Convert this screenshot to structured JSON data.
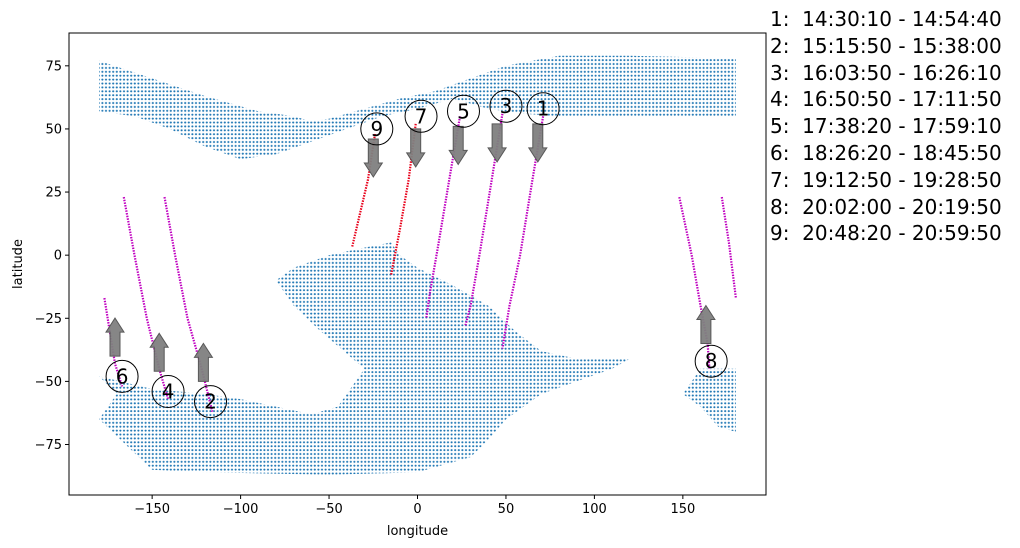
{
  "chart_data": {
    "type": "scatter",
    "title": "",
    "xlabel": "longitude",
    "ylabel": "latitude",
    "xlim": [
      -197,
      197
    ],
    "ylim": [
      -95,
      88
    ],
    "xticks": [
      -150,
      -100,
      -50,
      0,
      50,
      100,
      150
    ],
    "yticks": [
      -75,
      -50,
      -25,
      0,
      25,
      50,
      75
    ],
    "xtick_labels": [
      "−150",
      "−100",
      "−50",
      "0",
      "50",
      "100",
      "150"
    ],
    "ytick_labels": [
      "−75",
      "−50",
      "−25",
      "0",
      "25",
      "50",
      "75"
    ],
    "grid": false,
    "colors": {
      "grid_points": "#1f77b4",
      "track_magenta": "#c000c0",
      "track_red": "#e8001a",
      "arrow_fill": "#808080",
      "arrow_edge": "#505050"
    },
    "regions": [
      {
        "name": "north",
        "outline": [
          [
            -180,
            77
          ],
          [
            -150,
            70
          ],
          [
            -120,
            63
          ],
          [
            -90,
            57
          ],
          [
            -70,
            55
          ],
          [
            -60,
            53
          ],
          [
            -50,
            54
          ],
          [
            -30,
            58
          ],
          [
            -10,
            62
          ],
          [
            10,
            65
          ],
          [
            30,
            70
          ],
          [
            50,
            75
          ],
          [
            80,
            79
          ],
          [
            120,
            79
          ],
          [
            180,
            78
          ],
          [
            180,
            55
          ],
          [
            150,
            55
          ],
          [
            120,
            55
          ],
          [
            100,
            55
          ],
          [
            80,
            55
          ],
          [
            60,
            56
          ],
          [
            40,
            58
          ],
          [
            20,
            62
          ],
          [
            0,
            58
          ],
          [
            -20,
            55
          ],
          [
            -40,
            50
          ],
          [
            -60,
            45
          ],
          [
            -80,
            40
          ],
          [
            -100,
            38
          ],
          [
            -120,
            43
          ],
          [
            -140,
            50
          ],
          [
            -160,
            55
          ],
          [
            -180,
            57
          ]
        ]
      },
      {
        "name": "south",
        "outline": [
          [
            -180,
            -48
          ],
          [
            -150,
            -53
          ],
          [
            -120,
            -55
          ],
          [
            -100,
            -57
          ],
          [
            -80,
            -60
          ],
          [
            -60,
            -63
          ],
          [
            -45,
            -60
          ],
          [
            -35,
            -50
          ],
          [
            -30,
            -45
          ],
          [
            -55,
            -30
          ],
          [
            -70,
            -20
          ],
          [
            -80,
            -10
          ],
          [
            -70,
            -5
          ],
          [
            -50,
            0
          ],
          [
            -30,
            3
          ],
          [
            -15,
            5
          ],
          [
            -10,
            0
          ],
          [
            0,
            -5
          ],
          [
            20,
            -12
          ],
          [
            40,
            -20
          ],
          [
            55,
            -30
          ],
          [
            70,
            -38
          ],
          [
            90,
            -41
          ],
          [
            120,
            -41
          ],
          [
            110,
            -45
          ],
          [
            90,
            -50
          ],
          [
            70,
            -55
          ],
          [
            60,
            -60
          ],
          [
            50,
            -65
          ],
          [
            40,
            -73
          ],
          [
            30,
            -80
          ],
          [
            0,
            -86
          ],
          [
            -50,
            -87
          ],
          [
            -120,
            -86
          ],
          [
            -150,
            -85
          ],
          [
            -165,
            -75
          ],
          [
            -180,
            -65
          ],
          [
            -170,
            -55
          ]
        ]
      },
      {
        "name": "south-east",
        "outline": [
          [
            160,
            -45
          ],
          [
            180,
            -45
          ],
          [
            180,
            -70
          ],
          [
            170,
            -68
          ],
          [
            160,
            -60
          ],
          [
            150,
            -55
          ]
        ]
      }
    ],
    "tracks": [
      {
        "id": "1",
        "color": "magenta",
        "points": [
          [
            71,
            55
          ],
          [
            65,
            30
          ],
          [
            58,
            0
          ],
          [
            52,
            -20
          ],
          [
            48,
            -37
          ]
        ],
        "label_at": [
          71,
          58
        ],
        "arrow": "down",
        "arrow_at": [
          68,
          52
        ]
      },
      {
        "id": "2",
        "color": "magenta",
        "points": [
          [
            -143,
            23
          ],
          [
            -137,
            0
          ],
          [
            -130,
            -25
          ],
          [
            -122,
            -45
          ],
          [
            -116,
            -62
          ]
        ],
        "label_at": [
          -117,
          -58
        ],
        "arrow": "up",
        "arrow_at": [
          -121,
          -50
        ]
      },
      {
        "id": "3",
        "color": "magenta",
        "points": [
          [
            48,
            56
          ],
          [
            42,
            30
          ],
          [
            35,
            0
          ],
          [
            30,
            -20
          ],
          [
            27,
            -28
          ]
        ],
        "label_at": [
          50,
          59
        ],
        "arrow": "down",
        "arrow_at": [
          45,
          52
        ]
      },
      {
        "id": "4",
        "color": "magenta",
        "points": [
          [
            -166,
            23
          ],
          [
            -160,
            0
          ],
          [
            -153,
            -25
          ],
          [
            -146,
            -45
          ],
          [
            -141,
            -57
          ]
        ],
        "label_at": [
          -141,
          -54
        ],
        "arrow": "up",
        "arrow_at": [
          -146,
          -46
        ]
      },
      {
        "id": "5",
        "color": "magenta",
        "points": [
          [
            24,
            55
          ],
          [
            18,
            30
          ],
          [
            12,
            5
          ],
          [
            7,
            -15
          ],
          [
            5,
            -25
          ]
        ],
        "label_at": [
          26,
          57
        ],
        "arrow": "down",
        "arrow_at": [
          23,
          51
        ]
      },
      {
        "id": "6",
        "color": "magenta",
        "points": [
          [
            -177,
            -17
          ],
          [
            -174,
            -30
          ],
          [
            -171,
            -43
          ],
          [
            -167,
            -52
          ]
        ],
        "label_at": [
          -167,
          -48
        ],
        "arrow": "up",
        "arrow_at": [
          -171,
          -40
        ]
      },
      {
        "id": "7",
        "color": "red",
        "points": [
          [
            -1,
            52
          ],
          [
            -5,
            30
          ],
          [
            -10,
            10
          ],
          [
            -15,
            -8
          ]
        ],
        "label_at": [
          2,
          55
        ],
        "arrow": "down",
        "arrow_at": [
          -1,
          50
        ]
      },
      {
        "id": "8",
        "color": "magenta",
        "points": [
          [
            148,
            23
          ],
          [
            155,
            0
          ],
          [
            160,
            -20
          ],
          [
            164,
            -35
          ],
          [
            165,
            -45
          ]
        ],
        "label_at": [
          166,
          -42
        ],
        "arrow": "up",
        "arrow_at": [
          163,
          -35
        ]
      },
      {
        "id": "8",
        "color": "magenta",
        "points": [
          [
            172,
            23
          ],
          [
            176,
            5
          ],
          [
            180,
            -17
          ]
        ],
        "label_at": null,
        "arrow": null,
        "arrow_at": null
      },
      {
        "id": "9",
        "color": "red",
        "points": [
          [
            -24,
            48
          ],
          [
            -28,
            30
          ],
          [
            -33,
            15
          ],
          [
            -37,
            3
          ]
        ],
        "label_at": [
          -23,
          50
        ],
        "arrow": "down",
        "arrow_at": [
          -25,
          46
        ]
      }
    ],
    "legend": [
      "1:  14:30:10 - 14:54:40",
      "2:  15:15:50 - 15:38:00",
      "3:  16:03:50 - 16:26:10",
      "4:  16:50:50 - 17:11:50",
      "5:  17:38:20 - 17:59:10",
      "6:  18:26:20 - 18:45:50",
      "7:  19:12:50 - 19:28:50",
      "8:  20:02:00 - 20:19:50",
      "9:  20:48:20 - 20:59:50"
    ]
  }
}
